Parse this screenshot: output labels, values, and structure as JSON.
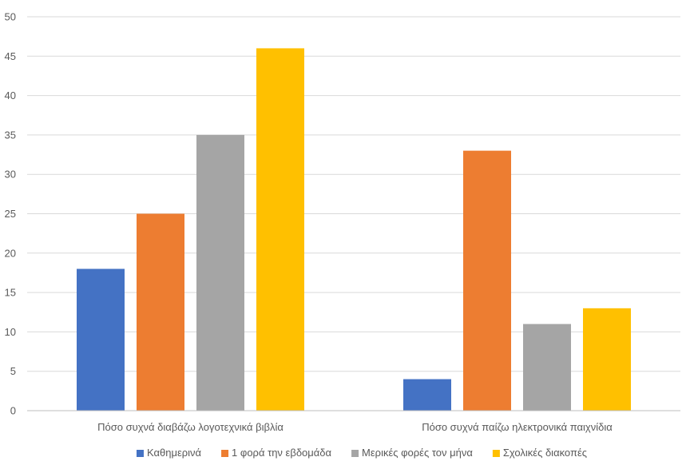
{
  "chart_data": {
    "type": "bar",
    "title": "",
    "xlabel": "",
    "ylabel": "",
    "categories": [
      "Πόσο συχνά διαβάζω λογοτεχνικά βιβλία",
      "Πόσο συχνά παίζω ηλεκτρονικά παιχνίδια"
    ],
    "series": [
      {
        "name": "Καθημερινά",
        "color": "#4472c4",
        "values": [
          18,
          4
        ]
      },
      {
        "name": "1 φορά την εβδομάδα",
        "color": "#ed7d31",
        "values": [
          25,
          33
        ]
      },
      {
        "name": "Μερικές φορές τον μήνα",
        "color": "#a5a5a5",
        "values": [
          35,
          11
        ]
      },
      {
        "name": "Σχολικές διακοπές",
        "color": "#ffc000",
        "values": [
          46,
          13
        ]
      }
    ],
    "ylim": [
      0,
      50
    ],
    "yticks": [
      0,
      5,
      10,
      15,
      20,
      25,
      30,
      35,
      40,
      45,
      50
    ],
    "grid": true,
    "legend_position": "bottom"
  }
}
